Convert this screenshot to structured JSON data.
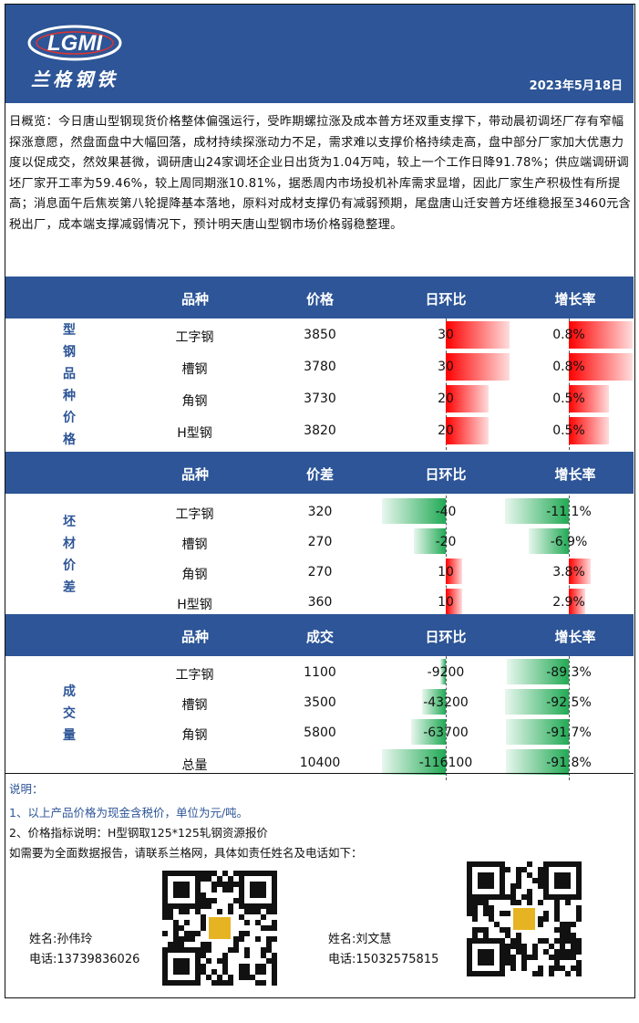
{
  "header": {
    "logo_text": "LGMI",
    "brand": "兰格钢铁",
    "date": "2023年5月18日"
  },
  "summary": "日概览：今日唐山型钢现货价格整体偏强运行，受昨期螺拉涨及成本普方坯双重支撑下，带动晨初调坯厂存有窄幅探涨意愿，然盘面盘中大幅回落，成材持续探涨动力不足，需求难以支撑价格持续走高，盘中部分厂家加大优惠力度以促成交，然效果甚微，调研唐山24家调坯企业日出货为1.04万吨，较上一个工作日降91.78%；供应端调研调坯厂家开工率为59.46%，较上周同期涨10.81%，据悉周内市场投机补库需求显增，因此厂家生产积极性有所提高；消息面午后焦炭第八轮提降基本落地，原料对成材支撑仍有减弱预期，尾盘唐山迁安普方坯维稳报至3460元含税出厂，成本端支撑减弱情况下，预计明天唐山型钢市场价格弱稳整理。",
  "colors": {
    "band": "#2d5597",
    "up": "#ff0000",
    "down": "#22aa55"
  },
  "sections": [
    {
      "side_label": [
        "型",
        "钢",
        "品",
        "种",
        "价",
        "格"
      ],
      "headers": [
        "品种",
        "价格",
        "日环比",
        "增长率"
      ],
      "rows": [
        {
          "name": "工字钢",
          "value": "3850",
          "change": "30",
          "change_num": 30,
          "rate": "0.8%",
          "rate_num": 0.8
        },
        {
          "name": "槽钢",
          "value": "3780",
          "change": "30",
          "change_num": 30,
          "rate": "0.8%",
          "rate_num": 0.8
        },
        {
          "name": "角钢",
          "value": "3730",
          "change": "20",
          "change_num": 20,
          "rate": "0.5%",
          "rate_num": 0.5
        },
        {
          "name": "H型钢",
          "value": "3820",
          "change": "20",
          "change_num": 20,
          "rate": "0.5%",
          "rate_num": 0.5
        }
      ]
    },
    {
      "side_label": [
        "坯",
        "材",
        "价",
        "差"
      ],
      "headers": [
        "品种",
        "价差",
        "日环比",
        "增长率"
      ],
      "rows": [
        {
          "name": "工字钢",
          "value": "320",
          "change": "-40",
          "change_num": -40,
          "rate": "-11.1%",
          "rate_num": -11.1
        },
        {
          "name": "槽钢",
          "value": "270",
          "change": "-20",
          "change_num": -20,
          "rate": "-6.9%",
          "rate_num": -6.9
        },
        {
          "name": "角钢",
          "value": "270",
          "change": "10",
          "change_num": 10,
          "rate": "3.8%",
          "rate_num": 3.8
        },
        {
          "name": "H型钢",
          "value": "360",
          "change": "10",
          "change_num": 10,
          "rate": "2.9%",
          "rate_num": 2.9
        }
      ]
    },
    {
      "side_label": [
        "成",
        "交",
        "量"
      ],
      "headers": [
        "品种",
        "成交",
        "日环比",
        "增长率"
      ],
      "rows": [
        {
          "name": "工字钢",
          "value": "1100",
          "change": "-9200",
          "change_num": -9200,
          "rate": "-89.3%",
          "rate_num": -89.3
        },
        {
          "name": "槽钢",
          "value": "3500",
          "change": "-43200",
          "change_num": -43200,
          "rate": "-92.5%",
          "rate_num": -92.5
        },
        {
          "name": "角钢",
          "value": "5800",
          "change": "-63700",
          "change_num": -63700,
          "rate": "-91.7%",
          "rate_num": -91.7
        },
        {
          "name": "总量",
          "value": "10400",
          "change": "-116100",
          "change_num": -116100,
          "rate": "-91.8%",
          "rate_num": -91.8
        }
      ]
    }
  ],
  "notes": {
    "title": "说明：",
    "line1": "1、以上产品价格为现金含税价，单位为元/吨。",
    "line2": "2、价格指标说明：H型钢取125*125轧钢资源报价",
    "line3": "如需要为全面数据报告，请联系兰格网，具体如责任姓名及电话如下："
  },
  "contacts": [
    {
      "name": "姓名:孙伟玲",
      "phone": "电话:13739836026"
    },
    {
      "name": "姓名:刘文慧",
      "phone": "电话:15032575815"
    }
  ]
}
